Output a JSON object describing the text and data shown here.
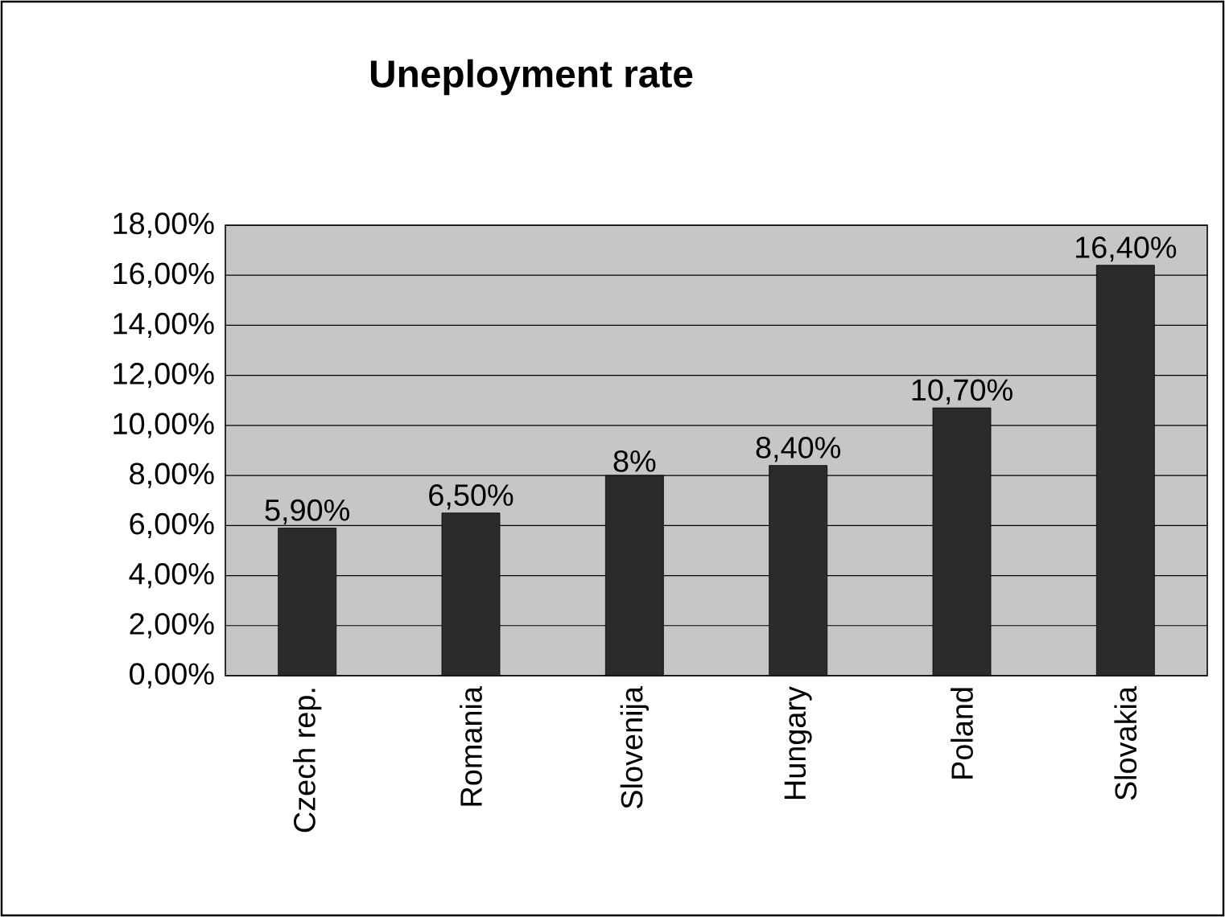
{
  "chart_data": {
    "type": "bar",
    "title": "Uneployment rate",
    "categories": [
      "Czech rep.",
      "Romania",
      "Slovenija",
      "Hungary",
      "Poland",
      "Slovakia"
    ],
    "values": [
      5.9,
      6.5,
      8,
      8.4,
      10.7,
      16.4
    ],
    "value_labels": [
      "5,90%",
      "6,50%",
      "8%",
      "8,40%",
      "10,70%",
      "16,40%"
    ],
    "color": "#2b2b2b",
    "ylim": [
      0,
      18
    ],
    "yticks": [
      {
        "value": 0,
        "label": "0,00%"
      },
      {
        "value": 2,
        "label": "2,00%"
      },
      {
        "value": 4,
        "label": "4,00%"
      },
      {
        "value": 6,
        "label": "6,00%"
      },
      {
        "value": 8,
        "label": "8,00%"
      },
      {
        "value": 10,
        "label": "10,00%"
      },
      {
        "value": 12,
        "label": "12,00%"
      },
      {
        "value": 14,
        "label": "14,00%"
      },
      {
        "value": 16,
        "label": "16,00%"
      },
      {
        "value": 18,
        "label": "18,00%"
      }
    ],
    "grid": "y"
  }
}
